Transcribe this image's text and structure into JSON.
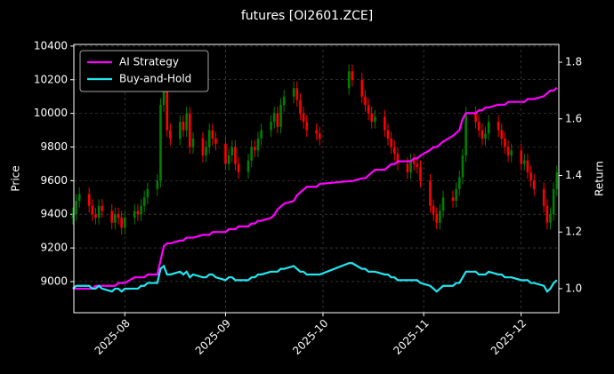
{
  "chart_data": {
    "type": "candlestick",
    "title": "futures [OI2601.ZCE]",
    "ylabel": "Price",
    "y2label": "Return",
    "x": [
      15,
      16,
      17,
      20,
      21,
      22,
      23,
      24,
      27,
      28,
      29,
      30,
      31,
      34,
      35,
      36,
      37,
      38,
      41,
      42,
      43,
      44,
      45,
      48,
      49,
      50,
      51,
      52,
      55,
      56,
      57,
      58,
      59,
      62,
      63,
      64,
      65,
      66,
      69,
      70,
      71,
      72,
      73,
      76,
      77,
      78,
      79,
      80,
      83,
      84,
      85,
      86,
      87,
      90,
      91,
      100,
      101,
      104,
      105,
      106,
      107,
      108,
      111,
      112,
      113,
      114,
      115,
      118,
      119,
      120,
      121,
      122,
      125,
      126,
      127,
      128,
      129,
      132,
      133,
      134,
      135,
      136,
      139,
      140,
      141,
      142,
      143,
      146,
      147,
      148,
      149,
      150,
      153,
      154,
      155,
      156,
      157,
      160,
      161,
      162,
      163,
      164
    ],
    "open": [
      9380,
      9400,
      9480,
      9520,
      9450,
      9400,
      9380,
      9450,
      9420,
      9350,
      9400,
      9380,
      9320,
      9380,
      9420,
      9400,
      9450,
      9500,
      9550,
      9600,
      10050,
      10150,
      9900,
      9850,
      9950,
      9900,
      10000,
      9800,
      9850,
      9750,
      9800,
      9900,
      9850,
      9820,
      9700,
      9750,
      9800,
      9700,
      9650,
      9720,
      9800,
      9780,
      9850,
      9900,
      9950,
      10000,
      9920,
      10050,
      10100,
      10150,
      10080,
      10000,
      9950,
      9900,
      9880,
      10150,
      10250,
      10200,
      10100,
      10050,
      10000,
      9950,
      9980,
      9900,
      9850,
      9800,
      9760,
      9700,
      9650,
      9720,
      9700,
      9680,
      9600,
      9450,
      9400,
      9350,
      9420,
      9500,
      9480,
      9550,
      9620,
      9750,
      10000,
      9950,
      9900,
      9850,
      9880,
      9950,
      9900,
      9850,
      9800,
      9750,
      9780,
      9700,
      9720,
      9650,
      9600,
      9550,
      9450,
      9350,
      9400,
      9550
    ],
    "high": [
      9440,
      9520,
      9560,
      9560,
      9490,
      9440,
      9490,
      9490,
      9460,
      9440,
      9440,
      9420,
      9420,
      9460,
      9460,
      9490,
      9540,
      9590,
      9640,
      10090,
      10190,
      10190,
      9940,
      9990,
      9990,
      10040,
      10040,
      9890,
      9890,
      9840,
      9940,
      9940,
      9890,
      9860,
      9790,
      9840,
      9840,
      9740,
      9760,
      9840,
      9840,
      9890,
      9940,
      9990,
      10040,
      10040,
      10090,
      10140,
      10190,
      10190,
      10120,
      10040,
      9990,
      9940,
      9920,
      10290,
      10290,
      10240,
      10140,
      10090,
      10040,
      10020,
      10020,
      9940,
      9890,
      9840,
      9800,
      9740,
      9760,
      9760,
      9740,
      9720,
      9640,
      9490,
      9440,
      9460,
      9540,
      9540,
      9590,
      9660,
      9790,
      10040,
      10040,
      9990,
      9940,
      9920,
      9990,
      9990,
      9940,
      9890,
      9840,
      9820,
      9820,
      9760,
      9760,
      9690,
      9640,
      9590,
      9490,
      9440,
      9590,
      9690
    ],
    "low": [
      9340,
      9360,
      9440,
      9410,
      9360,
      9340,
      9340,
      9380,
      9310,
      9310,
      9340,
      9280,
      9280,
      9340,
      9360,
      9360,
      9410,
      9460,
      9510,
      9560,
      10010,
      9860,
      9810,
      9810,
      9860,
      9860,
      9760,
      9760,
      9710,
      9710,
      9760,
      9810,
      9780,
      9660,
      9660,
      9710,
      9660,
      9610,
      9610,
      9680,
      9740,
      9740,
      9810,
      9860,
      9910,
      9880,
      9880,
      10010,
      10060,
      10040,
      9960,
      9910,
      9860,
      9840,
      9810,
      10110,
      10160,
      10060,
      10010,
      9960,
      9910,
      9910,
      9860,
      9810,
      9760,
      9720,
      9660,
      9610,
      9610,
      9660,
      9640,
      9560,
      9410,
      9360,
      9310,
      9310,
      9380,
      9440,
      9440,
      9510,
      9580,
      9710,
      9910,
      9860,
      9810,
      9810,
      9840,
      9860,
      9810,
      9760,
      9710,
      9710,
      9660,
      9660,
      9610,
      9560,
      9510,
      9410,
      9310,
      9310,
      9360,
      9510
    ],
    "close": [
      9400,
      9480,
      9520,
      9450,
      9400,
      9380,
      9450,
      9420,
      9350,
      9400,
      9380,
      9320,
      9380,
      9420,
      9400,
      9450,
      9500,
      9550,
      9600,
      10050,
      10150,
      9900,
      9850,
      9950,
      9900,
      10000,
      9800,
      9850,
      9750,
      9800,
      9900,
      9850,
      9820,
      9700,
      9750,
      9800,
      9700,
      9650,
      9720,
      9800,
      9780,
      9850,
      9900,
      9950,
      10000,
      9920,
      10050,
      10100,
      10150,
      10080,
      10000,
      9950,
      9900,
      9880,
      9850,
      10250,
      10200,
      10100,
      10050,
      10000,
      9950,
      9980,
      9900,
      9850,
      9800,
      9760,
      9700,
      9650,
      9720,
      9700,
      9680,
      9600,
      9450,
      9400,
      9350,
      9420,
      9500,
      9480,
      9550,
      9620,
      9750,
      10000,
      9950,
      9900,
      9850,
      9880,
      9950,
      9900,
      9850,
      9800,
      9750,
      9780,
      9700,
      9720,
      9650,
      9600,
      9550,
      9450,
      9350,
      9400,
      9550,
      9650
    ],
    "up_color": "#008000",
    "down_color": "#ff0000",
    "series": [
      {
        "name": "AI Strategy",
        "color": "#ff00ff",
        "axis": "y2",
        "values": [
          1.0,
          1.0,
          1.0,
          1.0,
          1.0,
          1.01,
          1.01,
          1.01,
          1.01,
          1.01,
          1.02,
          1.02,
          1.02,
          1.04,
          1.04,
          1.04,
          1.04,
          1.05,
          1.05,
          1.1,
          1.15,
          1.16,
          1.16,
          1.17,
          1.17,
          1.18,
          1.18,
          1.18,
          1.19,
          1.19,
          1.19,
          1.2,
          1.2,
          1.2,
          1.21,
          1.21,
          1.21,
          1.22,
          1.22,
          1.23,
          1.23,
          1.24,
          1.24,
          1.25,
          1.26,
          1.28,
          1.29,
          1.3,
          1.31,
          1.33,
          1.34,
          1.35,
          1.36,
          1.36,
          1.37,
          1.38,
          1.38,
          1.39,
          1.39,
          1.4,
          1.41,
          1.42,
          1.42,
          1.43,
          1.44,
          1.44,
          1.45,
          1.45,
          1.45,
          1.46,
          1.46,
          1.47,
          1.49,
          1.5,
          1.5,
          1.51,
          1.52,
          1.54,
          1.55,
          1.56,
          1.6,
          1.62,
          1.62,
          1.63,
          1.63,
          1.64,
          1.64,
          1.65,
          1.65,
          1.65,
          1.66,
          1.66,
          1.66,
          1.66,
          1.67,
          1.67,
          1.67,
          1.68,
          1.69,
          1.7,
          1.7,
          1.71
        ]
      },
      {
        "name": "Buy-and-Hold",
        "color": "#22e6f0",
        "axis": "y2",
        "values": [
          1.0,
          1.01,
          1.01,
          1.01,
          1.0,
          1.0,
          1.01,
          1.0,
          0.99,
          1.0,
          1.0,
          0.99,
          1.0,
          1.0,
          1.0,
          1.01,
          1.01,
          1.02,
          1.02,
          1.07,
          1.08,
          1.05,
          1.05,
          1.06,
          1.05,
          1.06,
          1.04,
          1.05,
          1.04,
          1.04,
          1.05,
          1.05,
          1.04,
          1.03,
          1.04,
          1.04,
          1.03,
          1.03,
          1.03,
          1.04,
          1.04,
          1.05,
          1.05,
          1.06,
          1.06,
          1.06,
          1.07,
          1.07,
          1.08,
          1.07,
          1.06,
          1.06,
          1.05,
          1.05,
          1.05,
          1.09,
          1.09,
          1.07,
          1.07,
          1.06,
          1.06,
          1.06,
          1.05,
          1.05,
          1.04,
          1.04,
          1.03,
          1.03,
          1.03,
          1.03,
          1.03,
          1.02,
          1.01,
          1.0,
          0.99,
          1.0,
          1.01,
          1.01,
          1.02,
          1.02,
          1.04,
          1.06,
          1.06,
          1.05,
          1.05,
          1.05,
          1.06,
          1.05,
          1.05,
          1.04,
          1.04,
          1.04,
          1.03,
          1.03,
          1.03,
          1.02,
          1.02,
          1.01,
          0.99,
          1.0,
          1.02,
          1.03
        ]
      }
    ],
    "xlim": [
      15.3,
      164.6
    ],
    "xticks": [
      {
        "value": 31,
        "label": "2025-08"
      },
      {
        "value": 62,
        "label": "2025-09"
      },
      {
        "value": 92,
        "label": "2025-10"
      },
      {
        "value": 123,
        "label": "2025-11"
      },
      {
        "value": 153,
        "label": "2025-12"
      }
    ],
    "ylim": [
      8815,
      10410
    ],
    "yticks": [
      9000,
      9200,
      9400,
      9600,
      9800,
      10000,
      10200,
      10400
    ],
    "y2lim": [
      0.915,
      1.863
    ],
    "y2ticks": [
      {
        "value": 1,
        "label": "1.0"
      },
      1.2,
      1.4,
      1.6,
      1.8
    ],
    "grid": true,
    "legend": "upper left"
  }
}
